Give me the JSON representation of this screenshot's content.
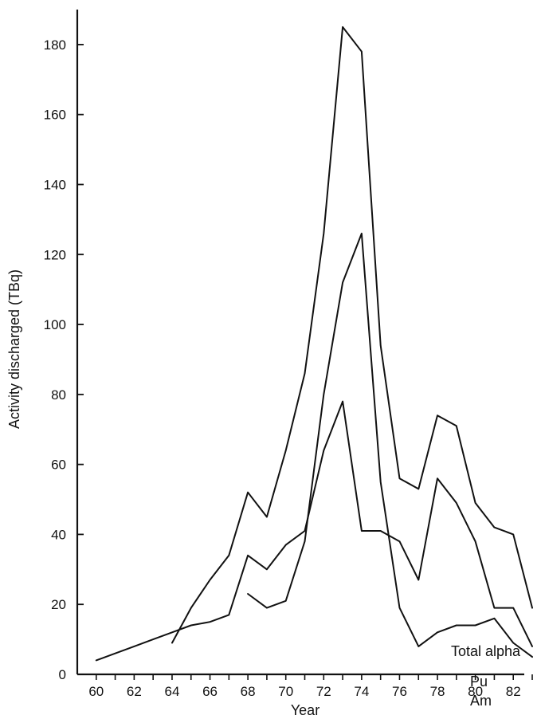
{
  "chart_data": {
    "type": "line",
    "title": "",
    "xlabel": "Year",
    "ylabel": "Activity discharged (TBq)",
    "xlim": [
      59,
      83
    ],
    "ylim": [
      0,
      190
    ],
    "x_ticks": [
      60,
      62,
      64,
      66,
      68,
      70,
      72,
      74,
      76,
      78,
      80,
      82
    ],
    "y_ticks": [
      0,
      20,
      40,
      60,
      80,
      100,
      120,
      140,
      160,
      180
    ],
    "grid": false,
    "legend": "none",
    "series": [
      {
        "name": "Total alpha",
        "x": [
          64,
          65,
          66,
          67,
          68,
          69,
          70,
          71,
          72,
          73,
          74,
          75,
          76,
          77,
          78,
          79,
          80,
          81,
          82,
          83
        ],
        "y": [
          9,
          19,
          27,
          34,
          52,
          45,
          64,
          86,
          126,
          185,
          178,
          94,
          56,
          53,
          74,
          71,
          49,
          42,
          40,
          19
        ],
        "color": "#111111"
      },
      {
        "name": "Pu",
        "x": [
          60,
          61,
          62,
          63,
          64,
          65,
          66,
          67,
          68,
          69,
          70,
          71,
          72,
          73,
          74,
          75,
          76,
          77,
          78,
          79,
          80,
          81,
          82,
          83
        ],
        "y": [
          4,
          6,
          8,
          10,
          12,
          14,
          15,
          17,
          34,
          30,
          37,
          41,
          64,
          78,
          41,
          41,
          38,
          27,
          56,
          49,
          38,
          19,
          19,
          8
        ],
        "color": "#111111"
      },
      {
        "name": "Am",
        "x": [
          68,
          69,
          70,
          71,
          72,
          73,
          74,
          75,
          76,
          77,
          78,
          79,
          80,
          81,
          82,
          83
        ],
        "y": [
          23,
          19,
          21,
          38,
          80,
          112,
          126,
          55,
          19,
          8,
          12,
          14,
          14,
          16,
          9,
          5
        ],
        "color": "#111111"
      }
    ]
  }
}
